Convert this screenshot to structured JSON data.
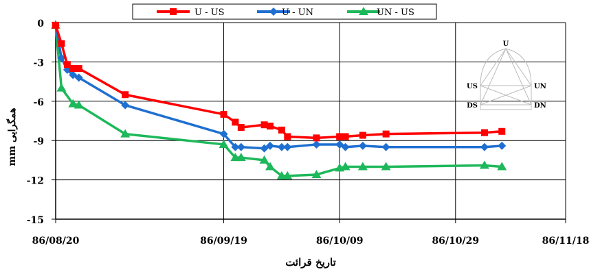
{
  "chart_data": {
    "type": "line",
    "x_axis": {
      "kind": "date",
      "tick_labels": [
        "86/08/20",
        "86/09/19",
        "86/10/09",
        "86/10/29",
        "86/11/18"
      ],
      "label": "تاریخ قرائت"
    },
    "y_axis": {
      "label": "همگرایی mm",
      "ylim": [
        -15,
        0
      ],
      "ticks": [
        0,
        -3,
        -6,
        -9,
        -12,
        -15
      ],
      "tick_labels": [
        "0",
        "-3",
        "-6",
        "-9",
        "-12",
        "-15"
      ]
    },
    "grid": true,
    "legend_position": "top",
    "series": [
      {
        "name": "U - US",
        "color": "#ff0000",
        "marker": "square",
        "points": [
          {
            "x": "86/08/20",
            "y": -0.2
          },
          {
            "x": "86/08/21",
            "y": -1.6
          },
          {
            "x": "86/08/22",
            "y": -3.2
          },
          {
            "x": "86/08/23",
            "y": -3.5
          },
          {
            "x": "86/08/24",
            "y": -3.5
          },
          {
            "x": "86/09/02",
            "y": -5.5
          },
          {
            "x": "86/09/19",
            "y": -7.0
          },
          {
            "x": "86/09/21",
            "y": -7.6
          },
          {
            "x": "86/09/22",
            "y": -8.0
          },
          {
            "x": "86/09/26",
            "y": -7.8
          },
          {
            "x": "86/09/27",
            "y": -7.9
          },
          {
            "x": "86/09/29",
            "y": -8.2
          },
          {
            "x": "86/09/30",
            "y": -8.7
          },
          {
            "x": "86/10/05",
            "y": -8.8
          },
          {
            "x": "86/10/09",
            "y": -8.7
          },
          {
            "x": "86/10/10",
            "y": -8.7
          },
          {
            "x": "86/10/13",
            "y": -8.6
          },
          {
            "x": "86/10/17",
            "y": -8.5
          },
          {
            "x": "86/11/04",
            "y": -8.4
          },
          {
            "x": "86/11/07",
            "y": -8.3
          }
        ]
      },
      {
        "name": "U - UN",
        "color": "#1f6fd1",
        "marker": "diamond",
        "points": [
          {
            "x": "86/08/20",
            "y": -0.2
          },
          {
            "x": "86/08/21",
            "y": -2.7
          },
          {
            "x": "86/08/22",
            "y": -3.6
          },
          {
            "x": "86/08/23",
            "y": -4.0
          },
          {
            "x": "86/08/24",
            "y": -4.2
          },
          {
            "x": "86/09/02",
            "y": -6.3
          },
          {
            "x": "86/09/19",
            "y": -8.5
          },
          {
            "x": "86/09/21",
            "y": -9.5
          },
          {
            "x": "86/09/22",
            "y": -9.5
          },
          {
            "x": "86/09/26",
            "y": -9.6
          },
          {
            "x": "86/09/27",
            "y": -9.4
          },
          {
            "x": "86/09/29",
            "y": -9.5
          },
          {
            "x": "86/09/30",
            "y": -9.5
          },
          {
            "x": "86/10/05",
            "y": -9.3
          },
          {
            "x": "86/10/09",
            "y": -9.3
          },
          {
            "x": "86/10/10",
            "y": -9.5
          },
          {
            "x": "86/10/13",
            "y": -9.4
          },
          {
            "x": "86/10/17",
            "y": -9.5
          },
          {
            "x": "86/11/04",
            "y": -9.5
          },
          {
            "x": "86/11/07",
            "y": -9.4
          }
        ]
      },
      {
        "name": "UN - US",
        "color": "#1db85a",
        "marker": "triangle",
        "points": [
          {
            "x": "86/08/20",
            "y": -0.2
          },
          {
            "x": "86/08/21",
            "y": -5.0
          },
          {
            "x": "86/08/23",
            "y": -6.2
          },
          {
            "x": "86/08/24",
            "y": -6.3
          },
          {
            "x": "86/09/02",
            "y": -8.5
          },
          {
            "x": "86/09/19",
            "y": -9.3
          },
          {
            "x": "86/09/21",
            "y": -10.3
          },
          {
            "x": "86/09/22",
            "y": -10.3
          },
          {
            "x": "86/09/26",
            "y": -10.5
          },
          {
            "x": "86/09/27",
            "y": -11.0
          },
          {
            "x": "86/09/29",
            "y": -11.7
          },
          {
            "x": "86/09/30",
            "y": -11.7
          },
          {
            "x": "86/10/05",
            "y": -11.6
          },
          {
            "x": "86/10/09",
            "y": -11.1
          },
          {
            "x": "86/10/10",
            "y": -11.0
          },
          {
            "x": "86/10/13",
            "y": -11.0
          },
          {
            "x": "86/10/17",
            "y": -11.0
          },
          {
            "x": "86/11/04",
            "y": -10.9
          },
          {
            "x": "86/11/07",
            "y": -11.0
          }
        ]
      }
    ],
    "inset_diagram": {
      "labels": {
        "top": "U",
        "upper_left": "US",
        "upper_right": "UN",
        "lower_left": "DS",
        "lower_right": "DN"
      }
    }
  }
}
